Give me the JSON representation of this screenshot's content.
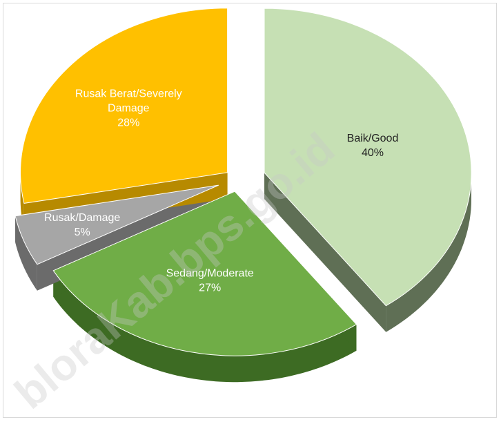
{
  "chart_data": {
    "type": "pie",
    "style": "3d-exploded",
    "slices": [
      {
        "label": "Baik/Good",
        "percent_label": "40%",
        "value": 40,
        "top_color": "#c6e0b4",
        "side_color": "#5f6f55",
        "label_color": "#222222"
      },
      {
        "label": "Sedang/Moderate",
        "percent_label": "27%",
        "value": 27,
        "top_color": "#70ad47",
        "side_color": "#3d6b23",
        "label_color": "#ffffff"
      },
      {
        "label": "Rusak/Damage",
        "percent_label": "5%",
        "value": 5,
        "top_color": "#a6a6a6",
        "side_color": "#6b6b6b",
        "label_color": "#ffffff"
      },
      {
        "label": "Rusak Berat/Severely Damage",
        "label_lines": [
          "Rusak Berat/Severely",
          "Damage"
        ],
        "percent_label": "28%",
        "value": 28,
        "top_color": "#ffc000",
        "side_color": "#b78a00",
        "label_color": "#ffffff"
      }
    ]
  },
  "watermark": "bloraKab.bps.go.id"
}
